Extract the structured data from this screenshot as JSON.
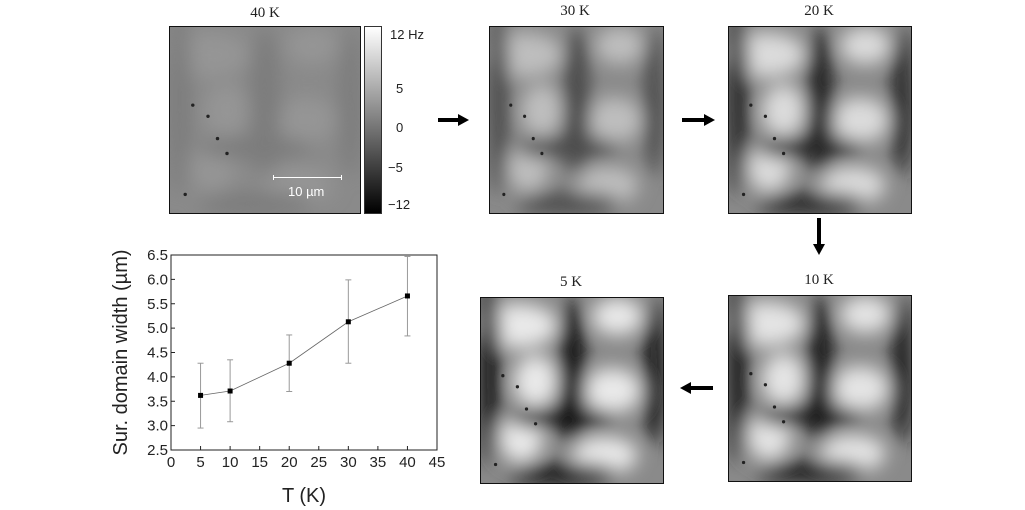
{
  "panels": [
    {
      "label": "40 K",
      "contrast": 0.12
    },
    {
      "label": "30 K",
      "contrast": 0.55
    },
    {
      "label": "20 K",
      "contrast": 0.85
    },
    {
      "label": "10 K",
      "contrast": 0.95
    },
    {
      "label": "5 K",
      "contrast": 1.0
    }
  ],
  "colorbar": {
    "ticks": [
      "12 Hz",
      "5",
      "0",
      "−5",
      "−12"
    ]
  },
  "scalebar": {
    "label": "10 µm"
  },
  "arrows": [
    "right-arrow",
    "right-arrow",
    "down-arrow",
    "left-arrow"
  ],
  "chart_data": {
    "type": "line",
    "xlabel": "T (K)",
    "ylabel": "Sur. domain width (µm)",
    "xlim": [
      0,
      45
    ],
    "ylim": [
      2.5,
      6.5
    ],
    "xticks": [
      "0",
      "5",
      "10",
      "15",
      "20",
      "25",
      "30",
      "35",
      "40",
      "45"
    ],
    "yticks": [
      "2.5",
      "3.0",
      "3.5",
      "4.0",
      "4.5",
      "5.0",
      "5.5",
      "6.0",
      "6.5"
    ],
    "grid": false,
    "x": [
      5,
      10,
      20,
      30,
      40
    ],
    "y": [
      3.62,
      3.71,
      4.28,
      5.13,
      5.66
    ],
    "err_low": [
      2.95,
      3.08,
      3.7,
      4.28,
      4.84
    ],
    "err_high": [
      4.28,
      4.35,
      4.86,
      5.99,
      6.47
    ]
  }
}
